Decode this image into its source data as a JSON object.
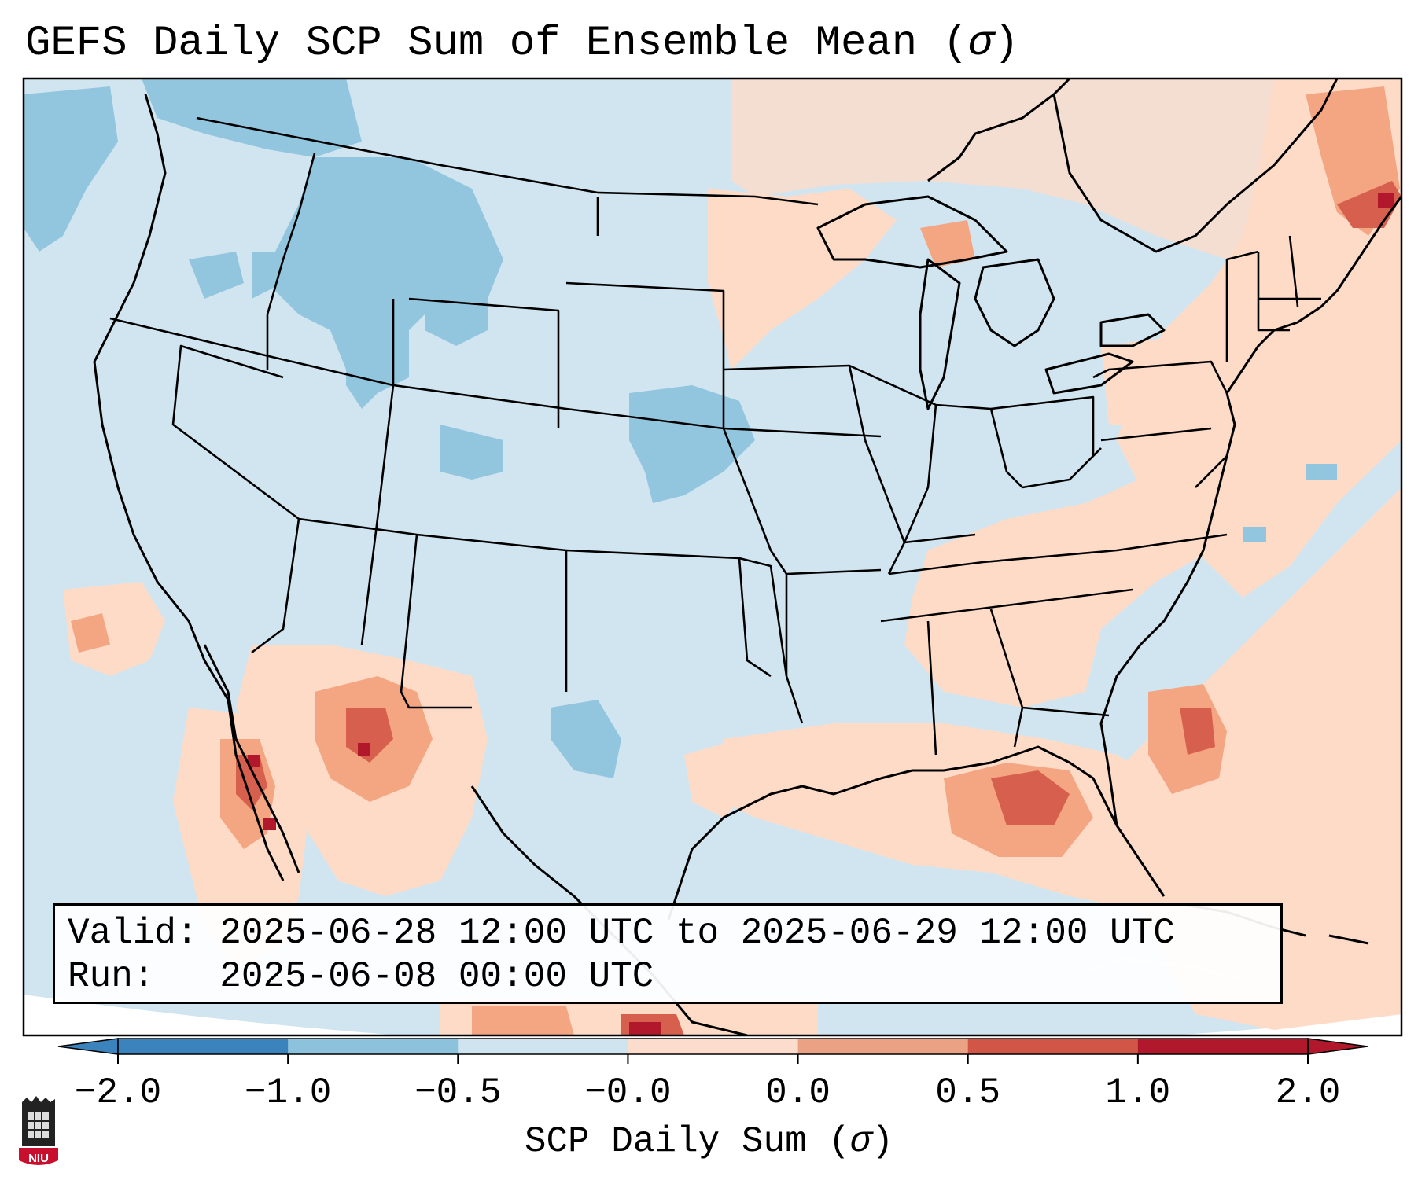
{
  "title": {
    "text": "GEFS Daily SCP Sum of Ensemble Mean (",
    "symbol": "σ",
    "close": ")"
  },
  "info": {
    "valid_label": "Valid:",
    "valid_text": "2025-06-28 12:00 UTC to 2025-06-29 12:00 UTC",
    "run_label": "Run:",
    "run_text": "2025-06-08 00:00 UTC"
  },
  "colorbar": {
    "ticks": [
      "−2.0",
      "−1.0",
      "−0.5",
      "−0.0",
      "0.0",
      "0.5",
      "1.0",
      "2.0"
    ],
    "label_text": "SCP Daily Sum (",
    "label_symbol": "σ",
    "label_close": ")",
    "colors": [
      "#3b83bd",
      "#8dc2dd",
      "#d0e4ef",
      "#f7fbfd",
      "#fcdccc",
      "#eba184",
      "#d15647",
      "#b2182b"
    ]
  },
  "logo": {
    "text": "NIU"
  }
}
